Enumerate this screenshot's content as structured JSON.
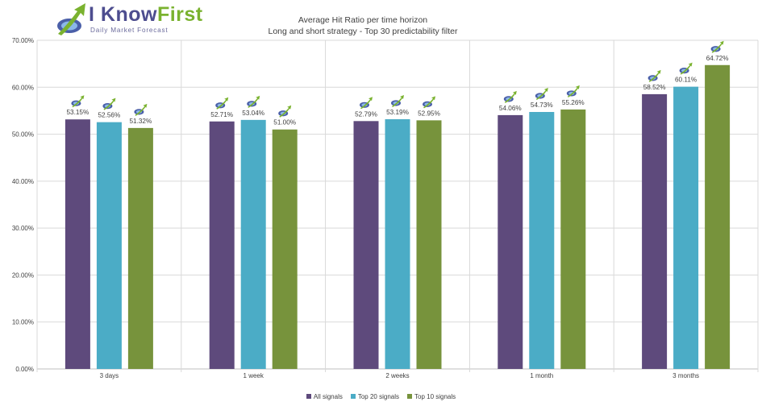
{
  "logo": {
    "brand_main": "I Know",
    "brand_accent": "First",
    "tagline": "Daily Market Forecast"
  },
  "chart_data": {
    "type": "bar",
    "title": "Average Hit Ratio per time horizon",
    "subtitle": "Long and short strategy - Top 30 predictability filter",
    "categories": [
      "3 days",
      "1 week",
      "2 weeks",
      "1 month",
      "3 months"
    ],
    "series": [
      {
        "name": "All signals",
        "values": [
          53.15,
          52.71,
          52.79,
          54.06,
          58.52
        ],
        "labels": [
          "53.15%",
          "52.71%",
          "52.79%",
          "54.06%",
          "58.52%"
        ],
        "color": "#5e4a7c"
      },
      {
        "name": "Top 20 signals",
        "values": [
          52.56,
          53.04,
          53.19,
          54.73,
          60.11
        ],
        "labels": [
          "52.56%",
          "53.04%",
          "53.19%",
          "54.73%",
          "60.11%"
        ],
        "color": "#4bacc6"
      },
      {
        "name": "Top 10 signals",
        "values": [
          51.32,
          51.0,
          52.95,
          55.26,
          64.72
        ],
        "labels": [
          "51.32%",
          "51.00%",
          "52.95%",
          "55.26%",
          "64.72%"
        ],
        "color": "#77933c"
      }
    ],
    "yticks": [
      "0.00%",
      "10.00%",
      "20.00%",
      "30.00%",
      "40.00%",
      "50.00%",
      "60.00%",
      "70.00%"
    ],
    "ylim": [
      0,
      70
    ],
    "xlabel": "",
    "ylabel": "",
    "grid": true,
    "legend": "bottom"
  }
}
